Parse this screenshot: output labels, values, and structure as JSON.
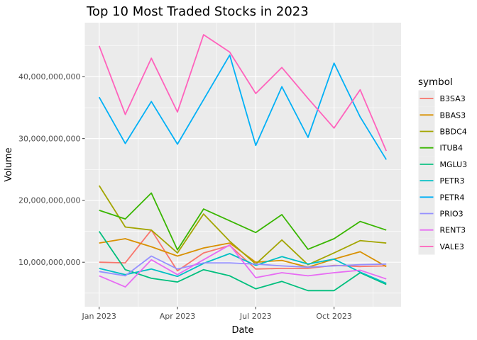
{
  "chart_data": {
    "type": "line",
    "title": "Top 10 Most Traded Stocks in 2023",
    "xlabel": "Date",
    "ylabel": "Volume",
    "legend_title": "symbol",
    "legend_position": "right",
    "grid": "on",
    "panel_background": "#EBEBEB",
    "gridline_color": "#FFFFFF",
    "tick_label_color": "#4D4D4D",
    "months": [
      "Jan",
      "Feb",
      "Mar",
      "Apr",
      "May",
      "Jun",
      "Jul",
      "Aug",
      "Sep",
      "Oct",
      "Nov",
      "Dec"
    ],
    "x_ticks": [
      {
        "month_index": 0,
        "label": "Jan 2023"
      },
      {
        "month_index": 3,
        "label": "Apr 2023"
      },
      {
        "month_index": 6,
        "label": "Jul 2023"
      },
      {
        "month_index": 9,
        "label": "Oct 2023"
      }
    ],
    "y_ticks": [
      {
        "value": 10000000000,
        "label": "10,000,000,000"
      },
      {
        "value": 20000000000,
        "label": "20,000,000,000"
      },
      {
        "value": 30000000000,
        "label": "30,000,000,000"
      },
      {
        "value": 40000000000,
        "label": "40,000,000,000"
      }
    ],
    "y_minor_ticks": [
      5000000000,
      15000000000,
      25000000000,
      35000000000,
      45000000000
    ],
    "ylim": [
      2800000000,
      48800000000
    ],
    "series": [
      {
        "name": "B3SA3",
        "color": "#F8766D",
        "values": [
          10000000000,
          9900000000,
          15200000000,
          8600000000,
          11500000000,
          12700000000,
          8900000000,
          9000000000,
          9000000000,
          9500000000,
          9300000000,
          9400000000
        ]
      },
      {
        "name": "BBAS3",
        "color": "#D89000",
        "values": [
          13100000000,
          13800000000,
          12500000000,
          11000000000,
          12300000000,
          13100000000,
          10000000000,
          10300000000,
          9200000000,
          10500000000,
          11700000000,
          9300000000
        ]
      },
      {
        "name": "BBDC4",
        "color": "#A3A500",
        "values": [
          22400000000,
          15700000000,
          15200000000,
          11500000000,
          17800000000,
          13400000000,
          9700000000,
          13600000000,
          9600000000,
          11500000000,
          13500000000,
          13100000000
        ]
      },
      {
        "name": "ITUB4",
        "color": "#39B600",
        "values": [
          18400000000,
          17000000000,
          21200000000,
          12000000000,
          18600000000,
          16700000000,
          14800000000,
          17700000000,
          12100000000,
          13800000000,
          16600000000,
          15200000000
        ]
      },
      {
        "name": "MGLU3",
        "color": "#00BF7D",
        "values": [
          15000000000,
          8800000000,
          7400000000,
          6800000000,
          8800000000,
          7800000000,
          5700000000,
          6900000000,
          5400000000,
          5400000000,
          8300000000,
          6400000000
        ]
      },
      {
        "name": "PETR3",
        "color": "#00BFC4",
        "values": [
          9000000000,
          8000000000,
          8900000000,
          7700000000,
          9800000000,
          11400000000,
          9500000000,
          10900000000,
          9700000000,
          10500000000,
          8400000000,
          6600000000
        ]
      },
      {
        "name": "PETR4",
        "color": "#00B0F6",
        "values": [
          36700000000,
          29200000000,
          36000000000,
          29100000000,
          36300000000,
          43500000000,
          28900000000,
          38400000000,
          30200000000,
          42200000000,
          33500000000,
          26600000000
        ]
      },
      {
        "name": "PRIO3",
        "color": "#9590FF",
        "values": [
          8500000000,
          7800000000,
          11000000000,
          8900000000,
          9900000000,
          9900000000,
          9700000000,
          9400000000,
          9200000000,
          9400000000,
          9600000000,
          9700000000
        ]
      },
      {
        "name": "RENT3",
        "color": "#E76BF3",
        "values": [
          7800000000,
          6000000000,
          10400000000,
          8000000000,
          10400000000,
          12800000000,
          7500000000,
          8300000000,
          7800000000,
          8300000000,
          8700000000,
          7300000000
        ]
      },
      {
        "name": "VALE3",
        "color": "#FF62BC",
        "values": [
          45000000000,
          33900000000,
          43000000000,
          34300000000,
          46800000000,
          44000000000,
          37300000000,
          41500000000,
          36500000000,
          31700000000,
          37900000000,
          28000000000
        ]
      }
    ]
  }
}
